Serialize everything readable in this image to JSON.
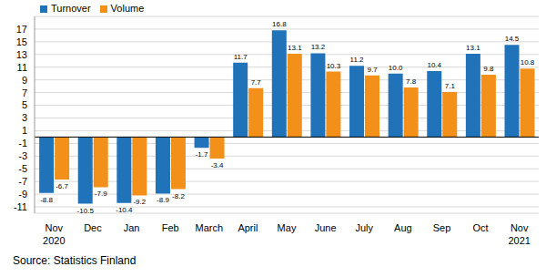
{
  "chart_data": {
    "type": "bar",
    "categories": [
      "Nov 2020",
      "Dec",
      "Jan",
      "Feb",
      "March",
      "April",
      "May",
      "June",
      "July",
      "Aug",
      "Sep",
      "Oct",
      "Nov 2021"
    ],
    "series": [
      {
        "name": "Turnover",
        "color": "#2072b9",
        "values": [
          -8.8,
          -10.5,
          -10.4,
          -8.9,
          -1.7,
          11.7,
          16.8,
          13.2,
          11.2,
          10.0,
          10.4,
          13.1,
          14.5
        ],
        "value_labels": [
          "-8.8",
          "-10.5",
          "-10.4",
          "-8.9",
          "-1.7",
          "11.7",
          "16.8",
          "13.2",
          "11.2",
          "10.0",
          "10.4",
          "13.1",
          "14.5"
        ]
      },
      {
        "name": "Volume",
        "color": "#f39019",
        "values": [
          -6.7,
          -7.9,
          -9.2,
          -8.2,
          -3.4,
          7.7,
          13.1,
          10.3,
          9.7,
          7.8,
          7.1,
          9.8,
          10.8
        ]
      }
    ],
    "ylim": [
      -12,
      19
    ],
    "yticks": [
      -11,
      -9,
      -7,
      -5,
      -3,
      -1,
      1,
      3,
      5,
      7,
      9,
      11,
      13,
      15,
      17
    ],
    "grid": true,
    "legend": "top-left",
    "data_labels": true,
    "source": "Source: Statistics Finland"
  }
}
